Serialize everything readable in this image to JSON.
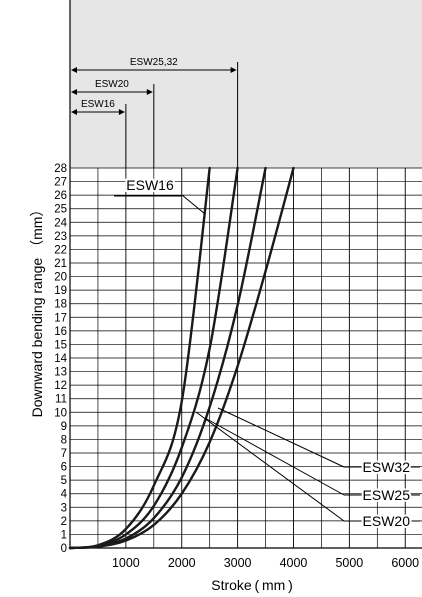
{
  "chart_data": {
    "type": "line",
    "xlabel": "Stroke ( mm )",
    "ylabel": "Downward bending range （mm）",
    "xlim": [
      0,
      6300
    ],
    "ylim": [
      0,
      28
    ],
    "x_ticks": [
      "1000",
      "2000",
      "3000",
      "4000",
      "5000",
      "6000"
    ],
    "y_ticks": [
      "0",
      "1",
      "2",
      "3",
      "4",
      "5",
      "6",
      "7",
      "8",
      "9",
      "10",
      "11",
      "12",
      "13",
      "14",
      "15",
      "16",
      "17",
      "18",
      "19",
      "20",
      "21",
      "22",
      "23",
      "24",
      "25",
      "26",
      "27",
      "28"
    ],
    "grid": true,
    "series": [
      {
        "name": "ESW16",
        "x": [
          0,
          500,
          1000,
          1500,
          2000,
          2500
        ],
        "y": [
          0,
          0.2,
          1.4,
          4.6,
          10.8,
          28
        ]
      },
      {
        "name": "ESW20",
        "x": [
          0,
          500,
          1000,
          1500,
          2000,
          2500,
          3000
        ],
        "y": [
          0,
          0.15,
          1.0,
          3.1,
          7.4,
          14.7,
          28
        ]
      },
      {
        "name": "ESW25",
        "x": [
          0,
          500,
          1000,
          1500,
          2000,
          2500,
          3000,
          3500
        ],
        "y": [
          0,
          0.12,
          0.7,
          2.2,
          5.2,
          10.4,
          17.9,
          28
        ]
      },
      {
        "name": "ESW32",
        "x": [
          0,
          500,
          1000,
          1500,
          2000,
          2500,
          3000,
          3500,
          4000
        ],
        "y": [
          0,
          0.1,
          0.55,
          1.7,
          4.0,
          7.8,
          13.4,
          20.4,
          28
        ]
      }
    ],
    "range_markers": [
      {
        "label": "ESW16",
        "x": 1000
      },
      {
        "label": "ESW20",
        "x": 1500
      },
      {
        "label": "ESW25,32",
        "x": 3000
      }
    ]
  }
}
